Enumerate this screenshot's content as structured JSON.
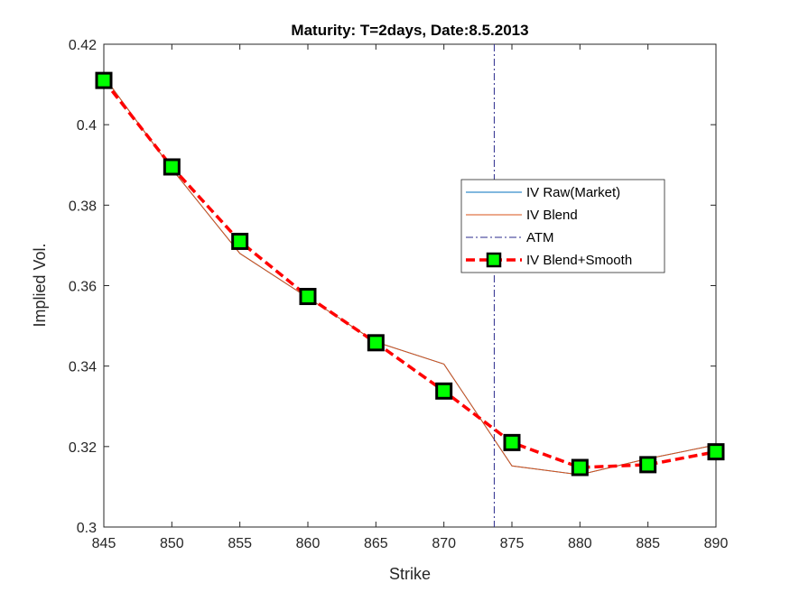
{
  "chart_data": {
    "type": "line",
    "title": "Maturity: T=2days, Date:8.5.2013",
    "xlabel": "Strike",
    "ylabel": "Implied Vol.",
    "xlim": [
      845,
      890
    ],
    "ylim": [
      0.3,
      0.42
    ],
    "x_ticks": [
      "845",
      "850",
      "855",
      "860",
      "865",
      "870",
      "875",
      "880",
      "885",
      "890"
    ],
    "y_ticks": [
      "0.3",
      "0.32",
      "0.34",
      "0.36",
      "0.38",
      "0.4",
      "0.42"
    ],
    "x_tick_values": [
      845,
      850,
      855,
      860,
      865,
      870,
      875,
      880,
      885,
      890
    ],
    "y_tick_values": [
      0.3,
      0.32,
      0.34,
      0.36,
      0.38,
      0.4,
      0.42
    ],
    "grid": false,
    "legend_position": "right",
    "atm_strike": 873.7,
    "series": [
      {
        "name": "IV Raw(Market)",
        "color": "#0072BD",
        "x": [
          845,
          850,
          855,
          860,
          865,
          870,
          875,
          880,
          885,
          890
        ],
        "y": [
          0.412,
          0.389,
          0.368,
          0.357,
          0.346,
          0.3405,
          0.3152,
          0.313,
          0.317,
          0.3204
        ]
      },
      {
        "name": "IV Blend",
        "color": "#D95319",
        "x": [
          845,
          850,
          855,
          860,
          865,
          870,
          875,
          880,
          885,
          890
        ],
        "y": [
          0.412,
          0.389,
          0.368,
          0.357,
          0.346,
          0.3405,
          0.3152,
          0.313,
          0.317,
          0.3204
        ]
      },
      {
        "name": "ATM",
        "color": "#2b2b8c",
        "style": "dash-dot vertical line"
      },
      {
        "name": "IV Blend+Smooth",
        "color": "#ff0000",
        "marker_fill": "#00ff00",
        "marker_edge": "#000000",
        "x": [
          845,
          850,
          855,
          860,
          865,
          870,
          875,
          880,
          885,
          890
        ],
        "y": [
          0.411,
          0.3895,
          0.371,
          0.3573,
          0.3458,
          0.3338,
          0.321,
          0.3148,
          0.3155,
          0.3187
        ]
      }
    ]
  }
}
